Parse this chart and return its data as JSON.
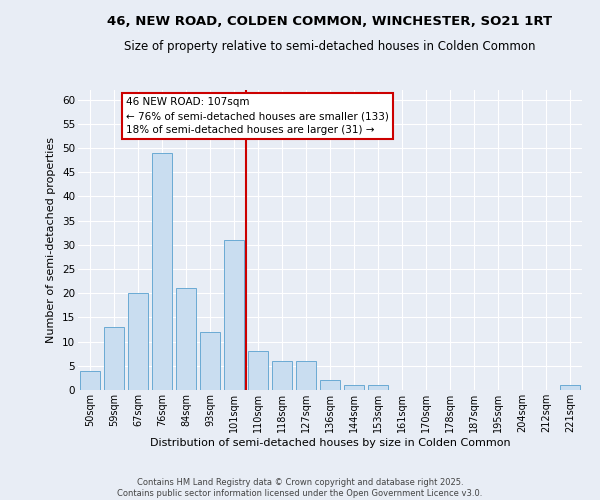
{
  "title": "46, NEW ROAD, COLDEN COMMON, WINCHESTER, SO21 1RT",
  "subtitle": "Size of property relative to semi-detached houses in Colden Common",
  "xlabel": "Distribution of semi-detached houses by size in Colden Common",
  "ylabel": "Number of semi-detached properties",
  "footnote": "Contains HM Land Registry data © Crown copyright and database right 2025.\nContains public sector information licensed under the Open Government Licence v3.0.",
  "categories": [
    "50sqm",
    "59sqm",
    "67sqm",
    "76sqm",
    "84sqm",
    "93sqm",
    "101sqm",
    "110sqm",
    "118sqm",
    "127sqm",
    "136sqm",
    "144sqm",
    "153sqm",
    "161sqm",
    "170sqm",
    "178sqm",
    "187sqm",
    "195sqm",
    "204sqm",
    "212sqm",
    "221sqm"
  ],
  "values": [
    4,
    13,
    20,
    49,
    21,
    12,
    31,
    8,
    6,
    6,
    2,
    1,
    1,
    0,
    0,
    0,
    0,
    0,
    0,
    0,
    1
  ],
  "bar_color": "#c9ddf0",
  "bar_edge_color": "#6aaad4",
  "background_color": "#e8edf5",
  "grid_color": "#ffffff",
  "vline_color": "#cc0000",
  "annotation_text": "46 NEW ROAD: 107sqm\n← 76% of semi-detached houses are smaller (133)\n18% of semi-detached houses are larger (31) →",
  "annotation_box_color": "#cc0000",
  "ylim": [
    0,
    62
  ],
  "yticks": [
    0,
    5,
    10,
    15,
    20,
    25,
    30,
    35,
    40,
    45,
    50,
    55,
    60
  ]
}
